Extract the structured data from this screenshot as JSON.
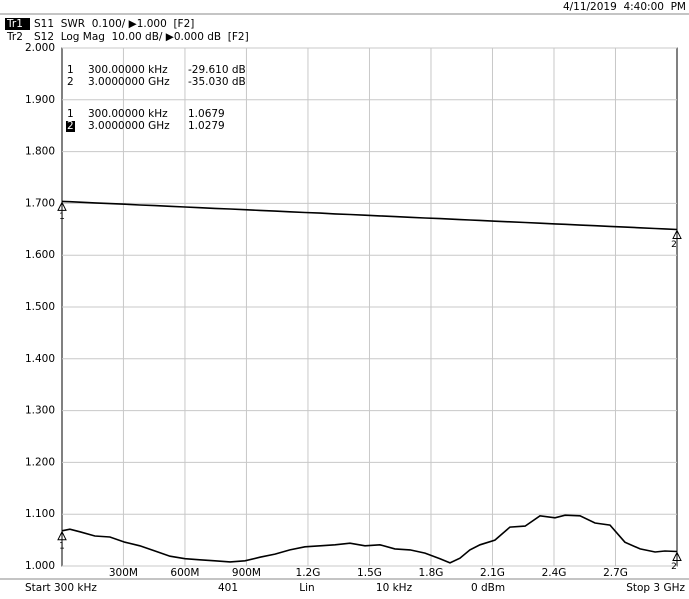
{
  "header": {
    "tr1": "Tr1",
    "tr1_setup": "S11  SWR  0.100/ ▶1.000  [F2]",
    "tr2": "Tr2",
    "tr2_setup": "S12  Log Mag  10.00 dB/ ▶0.000 dB  [F2]",
    "timestamp": "4/11/2019  4:40:00  PM"
  },
  "marker_table_tr2": [
    [
      "1",
      "300.00000 kHz",
      "-29.610 dB"
    ],
    [
      "2",
      "3.0000000 GHz",
      "-35.030 dB"
    ]
  ],
  "marker_table_tr1": [
    [
      "1",
      "300.00000 kHz",
      "1.0679"
    ],
    [
      "2",
      "3.0000000 GHz",
      "1.0279"
    ]
  ],
  "footer": {
    "start": "Start 300 kHz",
    "points": "401",
    "sweep": "Lin",
    "ifbw": "10 kHz",
    "power": "0 dBm",
    "stop": "Stop 3 GHz"
  },
  "chart_data": {
    "type": "line",
    "grid": true,
    "x": [
      0.0003,
      0.039,
      0.088,
      0.161,
      0.234,
      0.307,
      0.38,
      0.454,
      0.527,
      0.6,
      0.673,
      0.746,
      0.82,
      0.893,
      0.966,
      1.039,
      1.112,
      1.185,
      1.259,
      1.332,
      1.405,
      1.478,
      1.551,
      1.624,
      1.698,
      1.771,
      1.844,
      1.893,
      1.941,
      1.99,
      2.039,
      2.112,
      2.185,
      2.259,
      2.332,
      2.405,
      2.454,
      2.527,
      2.6,
      2.673,
      2.746,
      2.82,
      2.893,
      2.941,
      3
    ],
    "xlim": [
      0.0003,
      3
    ],
    "xticks": [
      {
        "value": 0.3,
        "label": "300M"
      },
      {
        "value": 0.6,
        "label": "600M"
      },
      {
        "value": 0.9,
        "label": "900M"
      },
      {
        "value": 1.2,
        "label": "1.2G"
      },
      {
        "value": 1.5,
        "label": "1.5G"
      },
      {
        "value": 1.8,
        "label": "1.8G"
      },
      {
        "value": 2.1,
        "label": "2.1G"
      },
      {
        "value": 2.4,
        "label": "2.4G"
      },
      {
        "value": 2.7,
        "label": "2.7G"
      }
    ],
    "ylim": [
      1,
      2
    ],
    "yticks": [
      {
        "value": 2,
        "label": "2.000"
      },
      {
        "value": 1.9,
        "label": "1.900"
      },
      {
        "value": 1.8,
        "label": "1.800"
      },
      {
        "value": 1.7,
        "label": "1.700"
      },
      {
        "value": 1.6,
        "label": "1.600"
      },
      {
        "value": 1.5,
        "label": "1.500"
      },
      {
        "value": 1.4,
        "label": "1.400"
      },
      {
        "value": 1.3,
        "label": "1.300"
      },
      {
        "value": 1.2,
        "label": "1.200"
      },
      {
        "value": 1.1,
        "label": "1.100"
      },
      {
        "value": 1,
        "label": "1.000"
      }
    ],
    "y2lim": [
      -100,
      0
    ],
    "markers": [
      "1",
      "2"
    ],
    "series": [
      {
        "name": "S11",
        "color": "#000000",
        "values": [
          1.068,
          1.071,
          1.066,
          1.058,
          1.056,
          1.046,
          1.039,
          1.029,
          1.019,
          1.014,
          1.012,
          1.01,
          1.008,
          1.01,
          1.017,
          1.023,
          1.031,
          1.037,
          1.039,
          1.041,
          1.044,
          1.039,
          1.041,
          1.033,
          1.031,
          1.025,
          1.014,
          1.006,
          1.015,
          1.031,
          1.041,
          1.05,
          1.075,
          1.077,
          1.097,
          1.093,
          1.098,
          1.097,
          1.083,
          1.079,
          1.046,
          1.033,
          1.027,
          1.029,
          1.028
        ]
      },
      {
        "name": "S12",
        "color": "#000000",
        "axis": "y2",
        "values": [
          -29.61,
          -29.68,
          -29.77,
          -29.9,
          -30.03,
          -30.16,
          -30.3,
          -30.43,
          -30.56,
          -30.69,
          -30.83,
          -30.96,
          -31.09,
          -31.22,
          -31.36,
          -31.49,
          -31.62,
          -31.75,
          -31.88,
          -32.02,
          -32.15,
          -32.28,
          -32.41,
          -32.54,
          -32.68,
          -32.81,
          -32.94,
          -33.03,
          -33.12,
          -33.21,
          -33.29,
          -33.43,
          -33.56,
          -33.69,
          -33.82,
          -33.96,
          -34.04,
          -34.18,
          -34.31,
          -34.44,
          -34.57,
          -34.71,
          -34.84,
          -34.92,
          -35.03
        ]
      }
    ]
  }
}
